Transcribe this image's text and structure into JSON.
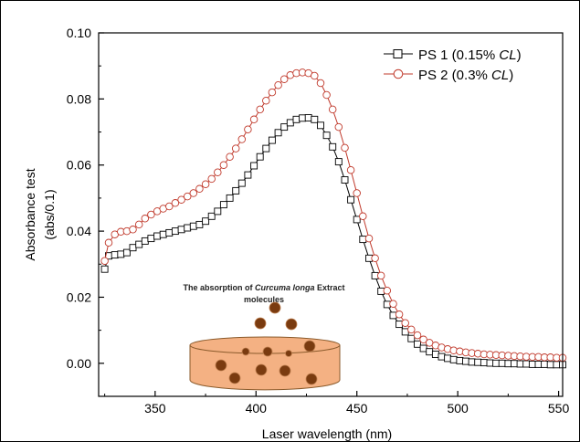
{
  "chart_data": {
    "type": "scatter",
    "xlabel": "Laser wavelength (nm)",
    "ylabel_line1": "Absorbance test",
    "ylabel_line2": "(abs/0.1)",
    "xlim": [
      322,
      552
    ],
    "ylim": [
      -0.01,
      0.1
    ],
    "x_ticks": [
      350,
      400,
      450,
      500,
      550
    ],
    "y_ticks": [
      0.0,
      0.02,
      0.04,
      0.06,
      0.08,
      0.1
    ],
    "y_tick_labels": [
      "0.00",
      "0.02",
      "0.04",
      "0.06",
      "0.08",
      "0.10"
    ],
    "grid": false,
    "legend_position": "top-right",
    "series": [
      {
        "name_prefix": "PS 1 (0.15% ",
        "name_italic": "CL",
        "name_suffix": ")",
        "marker": "square",
        "color": "#000000",
        "x": [
          325,
          327,
          330,
          333,
          336,
          339,
          342,
          345,
          348,
          351,
          354,
          357,
          360,
          363,
          366,
          369,
          372,
          375,
          378,
          381,
          384,
          387,
          390,
          393,
          396,
          399,
          402,
          405,
          408,
          411,
          414,
          417,
          420,
          423,
          426,
          429,
          432,
          435,
          438,
          441,
          444,
          447,
          450,
          453,
          456,
          459,
          462,
          465,
          468,
          471,
          474,
          477,
          480,
          483,
          486,
          489,
          492,
          495,
          498,
          501,
          504,
          507,
          510,
          513,
          516,
          519,
          522,
          525,
          528,
          531,
          534,
          537,
          540,
          543,
          546,
          549,
          552
        ],
        "y": [
          0.0285,
          0.0325,
          0.0328,
          0.033,
          0.0335,
          0.035,
          0.036,
          0.037,
          0.0378,
          0.0385,
          0.039,
          0.0395,
          0.04,
          0.0405,
          0.041,
          0.0415,
          0.042,
          0.043,
          0.0445,
          0.046,
          0.048,
          0.05,
          0.0522,
          0.0545,
          0.057,
          0.0598,
          0.0625,
          0.065,
          0.0675,
          0.0698,
          0.0715,
          0.0728,
          0.0738,
          0.0742,
          0.0743,
          0.0738,
          0.072,
          0.069,
          0.0655,
          0.061,
          0.0555,
          0.0495,
          0.0435,
          0.0375,
          0.0318,
          0.0265,
          0.0218,
          0.0178,
          0.0145,
          0.0118,
          0.0095,
          0.0075,
          0.0058,
          0.0045,
          0.0035,
          0.0027,
          0.002,
          0.0015,
          0.0011,
          0.0008,
          0.0006,
          0.0004,
          0.0003,
          0.0002,
          0.0001,
          0.0,
          0.0,
          -0.0001,
          -0.0001,
          -0.0002,
          -0.0002,
          -0.0003,
          -0.0003,
          -0.0003,
          -0.0004,
          -0.0004,
          -0.0004
        ]
      },
      {
        "name_prefix": "PS 2 (0.3% ",
        "name_italic": "CL",
        "name_suffix": ")",
        "marker": "circle",
        "color": "#c0392b",
        "x": [
          325,
          327,
          330,
          333,
          336,
          339,
          342,
          345,
          348,
          351,
          354,
          357,
          360,
          363,
          366,
          369,
          372,
          375,
          378,
          381,
          384,
          387,
          390,
          393,
          396,
          399,
          402,
          405,
          408,
          411,
          414,
          417,
          420,
          423,
          426,
          429,
          432,
          435,
          438,
          441,
          444,
          447,
          450,
          453,
          456,
          459,
          462,
          465,
          468,
          471,
          474,
          477,
          480,
          483,
          486,
          489,
          492,
          495,
          498,
          501,
          504,
          507,
          510,
          513,
          516,
          519,
          522,
          525,
          528,
          531,
          534,
          537,
          540,
          543,
          546,
          549,
          552
        ],
        "y": [
          0.031,
          0.0365,
          0.039,
          0.0398,
          0.04,
          0.0405,
          0.042,
          0.0438,
          0.045,
          0.046,
          0.0468,
          0.0475,
          0.0485,
          0.0495,
          0.0505,
          0.0515,
          0.0528,
          0.0542,
          0.0558,
          0.0578,
          0.06,
          0.0625,
          0.065,
          0.0678,
          0.0708,
          0.0738,
          0.0768,
          0.0795,
          0.082,
          0.0842,
          0.086,
          0.0872,
          0.0878,
          0.088,
          0.0878,
          0.087,
          0.0848,
          0.0812,
          0.0768,
          0.0715,
          0.0652,
          0.0585,
          0.0515,
          0.0445,
          0.0378,
          0.0318,
          0.0265,
          0.022,
          0.018,
          0.0148,
          0.0122,
          0.0102,
          0.0085,
          0.0072,
          0.0062,
          0.0054,
          0.0048,
          0.0043,
          0.0039,
          0.0036,
          0.0033,
          0.0031,
          0.0029,
          0.0027,
          0.0026,
          0.0025,
          0.0024,
          0.0023,
          0.0022,
          0.0021,
          0.002,
          0.0019,
          0.0019,
          0.0018,
          0.0018,
          0.0017,
          0.0017
        ]
      }
    ]
  },
  "inset": {
    "line1_prefix": "The absorption of ",
    "line1_italic": "Curcuma longa",
    "line1_suffix": " Extract",
    "line2": "molecules",
    "dish_color": "#f4b183",
    "dish_edge": "#8a5a2b",
    "particle_color": "#7a3b10"
  }
}
